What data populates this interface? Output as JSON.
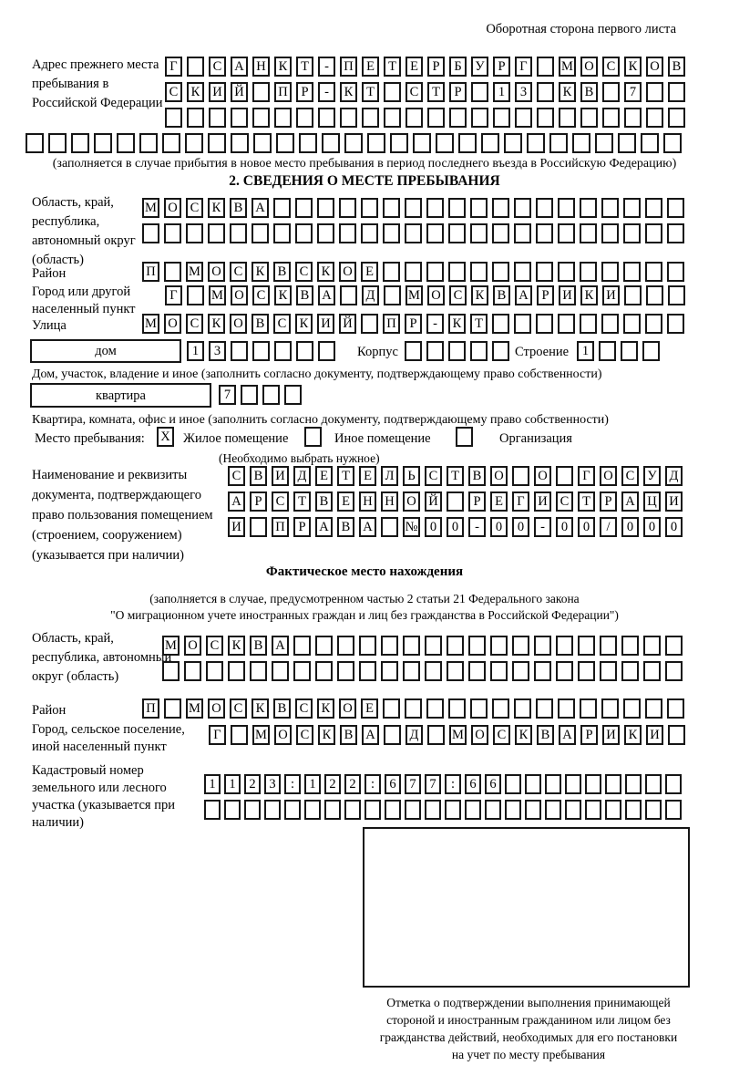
{
  "page": {
    "header_note": "Оборотная сторона первого листа"
  },
  "prev_address": {
    "label": "Адрес прежнего места пребывания в Российской Федерации",
    "row1": {
      "text": "Г САНКТ-ПЕТЕРБУРГ МОСКОВ",
      "len": 24
    },
    "row2": {
      "text": "СКИЙ ПР-КТ СТР 13 КВ 7",
      "len": 24
    },
    "row3": {
      "text": "",
      "len": 24
    },
    "row4": {
      "text": "",
      "len": 29
    },
    "note": "(заполняется в случае прибытия в новое место пребывания в период последнего въезда в Российскую Федерацию)"
  },
  "section2": {
    "title": "2. СВЕДЕНИЯ О МЕСТЕ ПРЕБЫВАНИЯ",
    "region": {
      "label": "Область, край, республика, автономный округ (область)",
      "row1": {
        "text": "МОСКВА",
        "len": 25
      },
      "row2": {
        "text": "",
        "len": 25
      }
    },
    "district": {
      "label": "Район",
      "row": {
        "text": "П МОСКВСКОЕ",
        "len": 25
      }
    },
    "city": {
      "label": "Город или другой населенный пункт",
      "row": {
        "text": "Г МОСКВА Д МОСКВАРИКИ",
        "len": 24
      }
    },
    "street": {
      "label": "Улица",
      "row": {
        "text": "МОСКОВСКИЙ ПР-КТ",
        "len": 25
      }
    },
    "house": {
      "box_label": "дом",
      "number": {
        "text": "13",
        "len": 7
      },
      "korpus_label": "Корпус",
      "korpus": {
        "text": "",
        "len": 5
      },
      "stroenie_label": "Строение",
      "stroenie": {
        "text": "1",
        "len": 4
      },
      "note": "Дом, участок, владение и иное (заполнить согласно документу, подтверждающему право собственности)"
    },
    "apartment": {
      "box_label": "квартира",
      "number": {
        "text": "7",
        "len": 4
      },
      "note": "Квартира, комната, офис и иное (заполнить согласно документу, подтверждающему право собственности)"
    },
    "stay_type": {
      "label": "Место пребывания:",
      "options": [
        {
          "label": "Жилое помещение",
          "checked": "X"
        },
        {
          "label": "Иное помещение",
          "checked": ""
        },
        {
          "label": "Организация",
          "checked": ""
        }
      ],
      "note": "(Необходимо выбрать нужное)"
    },
    "document": {
      "label": "Наименование и реквизиты документа, подтверждающего право пользования помещением (строением, сооружением) (указывается при наличии)",
      "row1": {
        "text": "СВИДЕТЕЛЬСТВО О ГОСУД",
        "len": 21
      },
      "row2": {
        "text": "АРСТВЕННОЙ РЕГИСТРАЦИ",
        "len": 21
      },
      "row3": {
        "text": "И ПРАВА №00-00-00/000",
        "len": 21
      }
    }
  },
  "actual_location": {
    "title": "Фактическое место нахождения",
    "note_line1": "(заполняется в случае, предусмотренном частью 2 статьи 21 Федерального закона",
    "note_line2": "\"О миграционном учете иностранных граждан и лиц без гражданства в Российской Федерации\")",
    "region": {
      "label": "Область, край, республика, автономный округ (область)",
      "row1": {
        "text": "МОСКВА",
        "len": 24
      },
      "row2": {
        "text": "",
        "len": 24
      }
    },
    "district": {
      "label": "Район",
      "row": {
        "text": "П МОСКВСКОЕ",
        "len": 25
      }
    },
    "city": {
      "label": "Город, сельское поселение, иной населенный пункт",
      "row": {
        "text": "Г МОСКВА Д МОСКВАРИКИ",
        "len": 22
      }
    },
    "cadastre": {
      "label": "Кадастровый номер земельного или лесного участка (указывается при наличии)",
      "row1": {
        "text": "1123:122:677:66",
        "len": 24
      },
      "row2": {
        "text": "",
        "len": 24
      }
    },
    "stamp_note_lines": [
      "Отметка о подтверждении выполнения принимающей",
      "стороной и иностранным гражданином или лицом без",
      "гражданства действий, необходимых для его постановки",
      "на учет по месту пребывания"
    ]
  }
}
